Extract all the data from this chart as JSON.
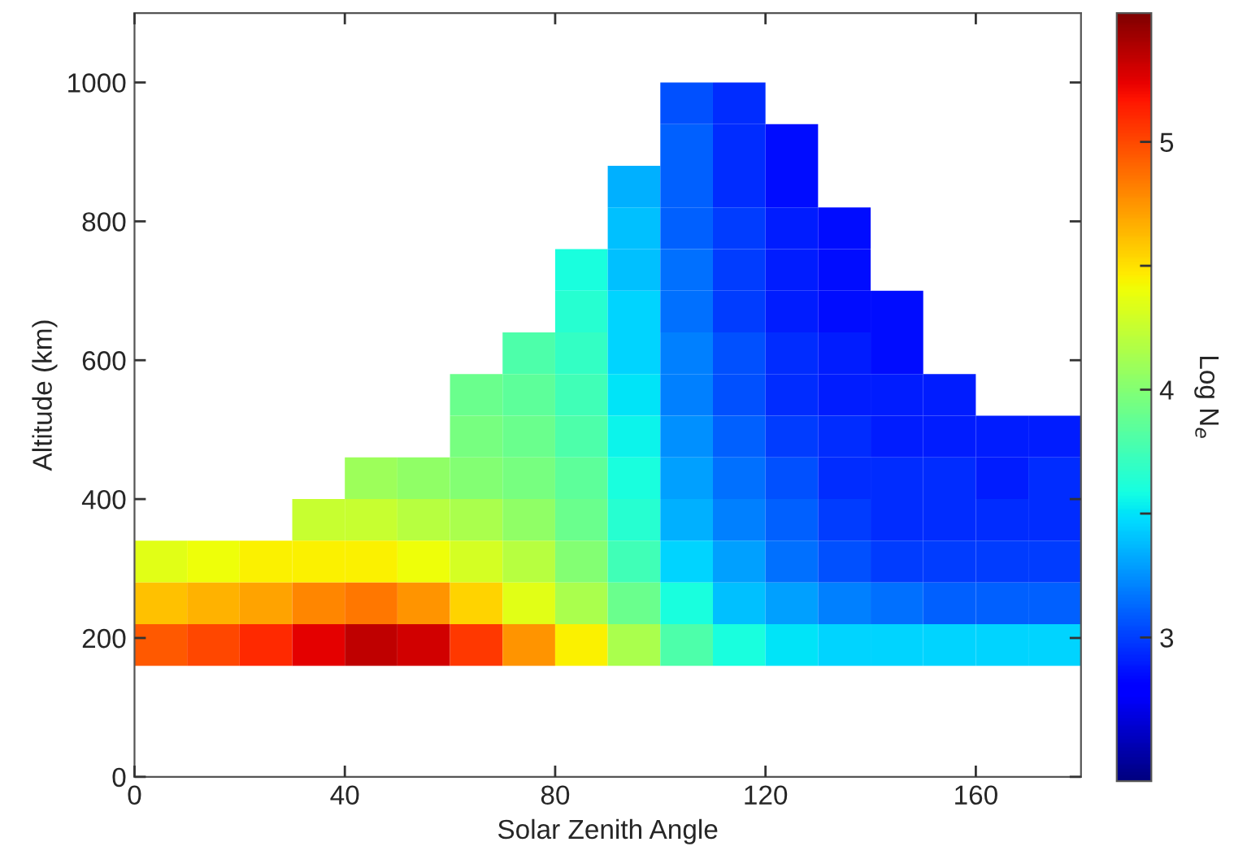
{
  "chart_data": {
    "type": "heatmap",
    "xlabel": "Solar Zenith Angle",
    "ylabel": "Altitude (km)",
    "clabel": "Log N$_{e}$",
    "x": [
      5,
      15,
      25,
      35,
      45,
      55,
      65,
      75,
      85,
      95,
      105,
      115,
      125,
      135,
      145,
      155,
      165,
      175
    ],
    "y": [
      970,
      910,
      850,
      790,
      730,
      670,
      610,
      550,
      490,
      430,
      370,
      310,
      250,
      190
    ],
    "cells": [
      [
        null,
        null,
        null,
        null,
        null,
        null,
        null,
        null,
        null,
        null,
        3.05,
        2.95,
        null,
        null,
        null,
        null,
        null,
        null
      ],
      [
        null,
        null,
        null,
        null,
        null,
        null,
        null,
        null,
        null,
        null,
        3.1,
        2.95,
        2.85,
        null,
        null,
        null,
        null,
        null
      ],
      [
        null,
        null,
        null,
        null,
        null,
        null,
        null,
        null,
        null,
        3.35,
        3.1,
        2.95,
        2.85,
        null,
        null,
        null,
        null,
        null
      ],
      [
        null,
        null,
        null,
        null,
        null,
        null,
        null,
        null,
        null,
        3.4,
        3.1,
        3.0,
        2.9,
        2.85,
        null,
        null,
        null,
        null
      ],
      [
        null,
        null,
        null,
        null,
        null,
        null,
        null,
        null,
        3.6,
        3.4,
        3.15,
        3.0,
        2.9,
        2.85,
        null,
        null,
        null,
        null
      ],
      [
        null,
        null,
        null,
        null,
        null,
        null,
        null,
        null,
        3.65,
        3.45,
        3.15,
        3.0,
        2.9,
        2.85,
        2.85,
        null,
        null,
        null
      ],
      [
        null,
        null,
        null,
        null,
        null,
        null,
        null,
        3.8,
        3.7,
        3.45,
        3.2,
        3.05,
        2.95,
        2.9,
        2.85,
        null,
        null,
        null
      ],
      [
        null,
        null,
        null,
        null,
        null,
        null,
        3.9,
        3.85,
        3.75,
        3.5,
        3.2,
        3.05,
        2.95,
        2.9,
        2.9,
        2.9,
        null,
        null
      ],
      [
        null,
        null,
        null,
        null,
        null,
        null,
        3.95,
        3.9,
        3.8,
        3.55,
        3.25,
        3.1,
        3.0,
        2.95,
        2.9,
        2.9,
        2.9,
        2.9
      ],
      [
        null,
        null,
        null,
        null,
        4.1,
        4.05,
        4.0,
        3.95,
        3.85,
        3.6,
        3.3,
        3.15,
        3.05,
        2.95,
        2.95,
        2.95,
        2.9,
        2.95
      ],
      [
        null,
        null,
        null,
        4.25,
        4.25,
        4.2,
        4.15,
        4.05,
        3.9,
        3.65,
        3.35,
        3.2,
        3.1,
        3.0,
        2.95,
        2.95,
        2.95,
        2.95
      ],
      [
        4.35,
        4.4,
        4.45,
        4.45,
        4.45,
        4.4,
        4.3,
        4.2,
        4.0,
        3.75,
        3.45,
        3.3,
        3.15,
        3.05,
        3.0,
        3.0,
        3.0,
        3.0
      ],
      [
        4.6,
        4.65,
        4.7,
        4.8,
        4.85,
        4.75,
        4.55,
        4.35,
        4.15,
        3.9,
        3.6,
        3.4,
        3.3,
        3.2,
        3.15,
        3.1,
        3.1,
        3.1
      ],
      [
        4.95,
        5.0,
        5.1,
        5.25,
        5.35,
        5.3,
        5.05,
        4.75,
        4.45,
        4.15,
        3.8,
        3.6,
        3.5,
        3.45,
        3.45,
        3.45,
        3.45,
        3.45
      ]
    ],
    "xlim": [
      0,
      180
    ],
    "xticks": [
      0,
      40,
      80,
      120,
      160
    ],
    "ylim": [
      0,
      1100
    ],
    "yticks": [
      0,
      200,
      400,
      600,
      800,
      1000
    ],
    "clim": [
      2.42,
      5.52
    ],
    "cticks": [
      3,
      {
        "value": 3.5,
        "label": null
      },
      4,
      {
        "value": 4.5,
        "label": null
      },
      5
    ],
    "grid": false
  }
}
